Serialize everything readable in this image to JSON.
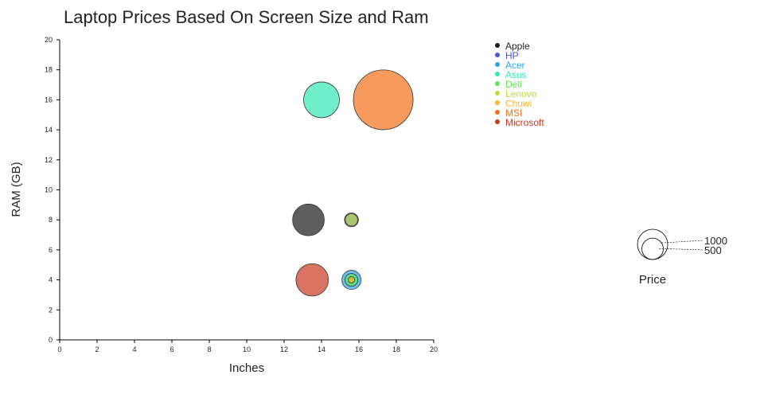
{
  "chart_data": {
    "type": "scatter",
    "title": "Laptop Prices Based On Screen Size and Ram",
    "xlabel": "Inches",
    "ylabel": "RAM (GB)",
    "xlim": [
      0,
      20
    ],
    "ylim": [
      0,
      20
    ],
    "xticks": [
      "0",
      "2",
      "4",
      "6",
      "8",
      "10",
      "12",
      "14",
      "16",
      "18",
      "20"
    ],
    "yticks": [
      "0",
      "2",
      "4",
      "6",
      "8",
      "10",
      "12",
      "14",
      "16",
      "18",
      "20"
    ],
    "size_field": "Price",
    "series": [
      {
        "name": "Apple",
        "color": "#1a1a1a",
        "points": [
          {
            "x": 13.3,
            "y": 8,
            "price": 1100
          }
        ]
      },
      {
        "name": "HP",
        "color": "#4a52d6",
        "points": [
          {
            "x": 15.6,
            "y": 8,
            "price": 210
          }
        ]
      },
      {
        "name": "Acer",
        "color": "#2aa6e8",
        "points": [
          {
            "x": 15.6,
            "y": 4,
            "price": 400
          }
        ]
      },
      {
        "name": "Asus",
        "color": "#35e8b4",
        "points": [
          {
            "x": 14.0,
            "y": 16,
            "price": 1400
          }
        ]
      },
      {
        "name": "Dell",
        "color": "#62e35c",
        "points": [
          {
            "x": 15.6,
            "y": 4,
            "price": 180
          }
        ]
      },
      {
        "name": "Lenovo",
        "color": "#b8e03a",
        "points": [
          {
            "x": 15.6,
            "y": 8,
            "price": 170
          }
        ]
      },
      {
        "name": "Chuwi",
        "color": "#f5b82e",
        "points": [
          {
            "x": 15.6,
            "y": 4,
            "price": 45
          }
        ]
      },
      {
        "name": "MSI",
        "color": "#f26f1a",
        "points": [
          {
            "x": 17.3,
            "y": 16,
            "price": 3900
          }
        ]
      },
      {
        "name": "Microsoft",
        "color": "#c8371e",
        "points": [
          {
            "x": 13.5,
            "y": 4,
            "price": 1150
          }
        ]
      }
    ],
    "size_legend": {
      "title": "Price",
      "entries": [
        {
          "label": "1000",
          "value": 1000
        },
        {
          "label": "500",
          "value": 500
        }
      ]
    },
    "legend_position": "top-right"
  }
}
